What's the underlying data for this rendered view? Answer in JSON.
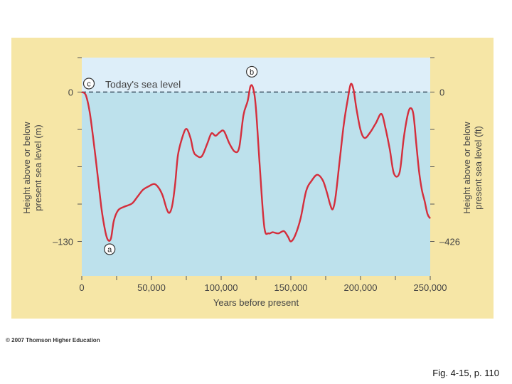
{
  "chart_data": {
    "type": "line",
    "xlabel": "Years before present",
    "ylabel_left": "Height above or below present sea level (m)",
    "ylabel_right": "Height above or below present sea level (ft)",
    "x_ticks": [
      "0",
      "50,000",
      "100,000",
      "150,000",
      "200,000",
      "250,000"
    ],
    "y_ticks_left": [
      "0",
      "–130"
    ],
    "y_ticks_right": [
      "0",
      "–426"
    ],
    "xlim": [
      0,
      250000
    ],
    "ylim": [
      -160,
      30
    ],
    "reference_line": {
      "label": "Today's sea level",
      "y": 0,
      "style": "dashed"
    },
    "annotations": [
      {
        "label": "a",
        "x": 20000,
        "y": -130
      },
      {
        "label": "b",
        "x": 122000,
        "y": 9
      },
      {
        "label": "c",
        "x": 0,
        "y": 0
      }
    ],
    "colors": {
      "curve": "#d42e3c",
      "sky": "#ddeef9",
      "water": "#bde1ec",
      "frame": "#f6e6a6",
      "dash": "#2c3e50"
    },
    "series": [
      {
        "x": [
          0,
          3000,
          6000,
          10000,
          14000,
          17000,
          19000,
          21000,
          23000,
          26000,
          30000,
          36000,
          40000,
          44000,
          48000,
          52000,
          55000,
          58000,
          61000,
          63000,
          65000,
          67000,
          69000,
          72000,
          75000,
          78000,
          80000,
          82000,
          86000,
          90000,
          93000,
          96000,
          99000,
          102000,
          106000,
          110000,
          113000,
          116000,
          119000,
          121000,
          123000,
          125000,
          128000,
          131000,
          134000,
          137000,
          141000,
          145000,
          148000,
          150000,
          153000,
          157000,
          161000,
          165000,
          169000,
          173000,
          176000,
          178000,
          180000,
          182000,
          185000,
          188000,
          191000,
          193000,
          195000,
          197000,
          200000,
          203000,
          207000,
          211000,
          215000,
          218000,
          221000,
          224000,
          228000,
          231000,
          234000,
          236000,
          238000,
          240000,
          242000,
          244000,
          246000,
          248000,
          250000
        ],
        "y": [
          0,
          -3,
          -20,
          -58,
          -100,
          -122,
          -129,
          -127,
          -112,
          -103,
          -100,
          -97,
          -91,
          -85,
          -82,
          -80,
          -83,
          -90,
          -102,
          -105,
          -98,
          -80,
          -55,
          -40,
          -32,
          -40,
          -51,
          -55,
          -56,
          -45,
          -36,
          -38,
          -35,
          -34,
          -45,
          -52,
          -48,
          -20,
          -8,
          5,
          3,
          -15,
          -70,
          -118,
          -123,
          -122,
          -123,
          -121,
          -126,
          -130,
          -125,
          -110,
          -86,
          -77,
          -72,
          -77,
          -88,
          -97,
          -102,
          -92,
          -60,
          -28,
          -5,
          7,
          2,
          -14,
          -33,
          -40,
          -35,
          -27,
          -19,
          -32,
          -50,
          -71,
          -70,
          -40,
          -19,
          -14,
          -20,
          -45,
          -69,
          -85,
          -95,
          -106,
          -110
        ]
      }
    ]
  },
  "footer": {
    "copyright": "© 2007 Thomson Higher Education",
    "caption": "Fig. 4-15, p. 110"
  }
}
